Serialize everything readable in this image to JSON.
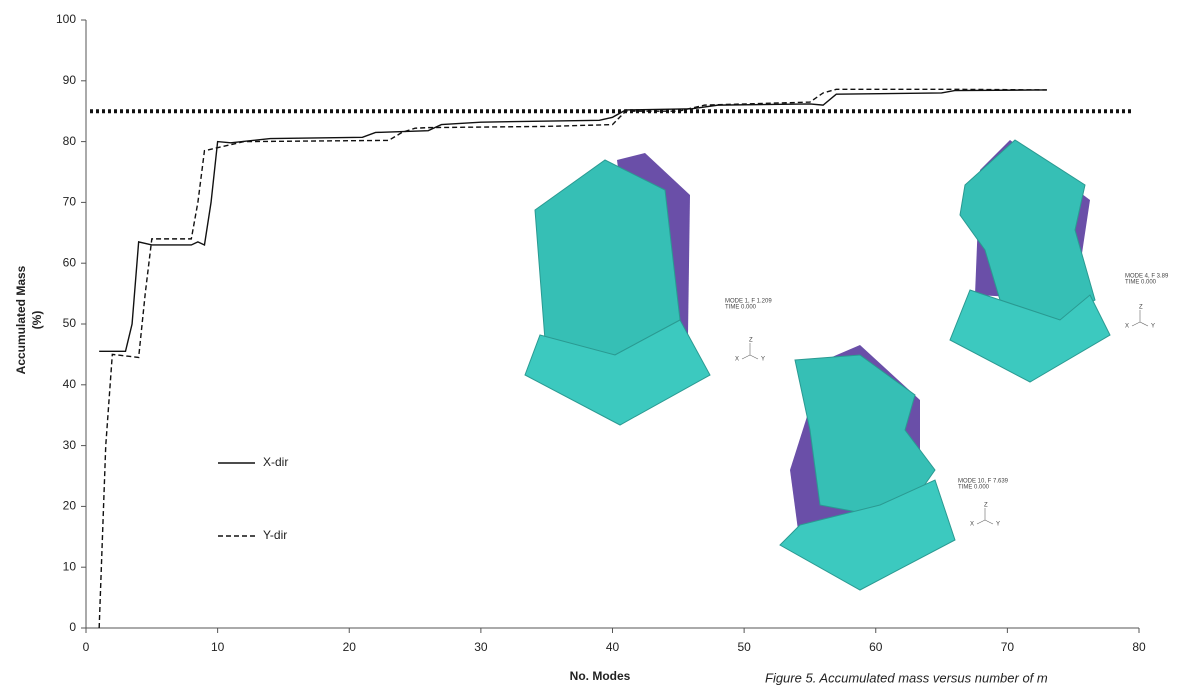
{
  "chart_data": {
    "type": "line",
    "xlabel": "No. Modes",
    "ylabel": [
      "Accumulated Mass",
      "(%)"
    ],
    "caption": "Figure 5. Accumulated mass versus number of m",
    "xlim": [
      0,
      80
    ],
    "xticks": [
      0,
      10,
      20,
      30,
      40,
      50,
      60,
      70,
      80
    ],
    "ylim": [
      0,
      100
    ],
    "yticks": [
      0,
      10,
      20,
      30,
      40,
      50,
      60,
      70,
      80,
      90,
      100
    ],
    "threshold": 85,
    "series": [
      {
        "name": "X-dir",
        "color": "#111111",
        "dash": "solid",
        "x": [
          1,
          3,
          3.5,
          4,
          5,
          8,
          8.5,
          9,
          9.5,
          10,
          11,
          14,
          21,
          22,
          26,
          27,
          30,
          39,
          40,
          41,
          46,
          48,
          55,
          56,
          57,
          65,
          66,
          73
        ],
        "values": [
          45.5,
          45.5,
          50,
          63.5,
          63,
          63,
          63.5,
          63,
          70,
          80,
          79.8,
          80.5,
          80.7,
          81.5,
          81.8,
          82.8,
          83.2,
          83.5,
          84,
          85.2,
          85.4,
          86,
          86.2,
          86,
          87.8,
          88,
          88.4,
          88.5
        ]
      },
      {
        "name": "Y-dir",
        "color": "#111111",
        "dash": "dashed",
        "x": [
          1,
          1.5,
          2,
          4,
          4.5,
          5,
          8,
          8.5,
          9,
          10,
          12,
          23,
          24,
          25,
          26,
          35,
          40,
          41,
          45,
          46,
          47,
          55,
          56,
          57,
          66,
          73
        ],
        "values": [
          0,
          30,
          45,
          44.5,
          55,
          64,
          64,
          70,
          78.5,
          79,
          80,
          80.2,
          81.5,
          82.2,
          82.3,
          82.5,
          82.8,
          85,
          85,
          85.5,
          86,
          86.5,
          88,
          88.6,
          88.6,
          88.5
        ]
      }
    ],
    "inset_labels": [
      [
        "MODE 1, F 1.209",
        "TIME 0.000"
      ],
      [
        "MODE 10, F 7.639",
        "TIME 0.000"
      ],
      [
        "MODE 4, F 3.89",
        "TIME 0.000"
      ]
    ],
    "triad_labels": [
      "Z",
      "X",
      "Y"
    ]
  }
}
